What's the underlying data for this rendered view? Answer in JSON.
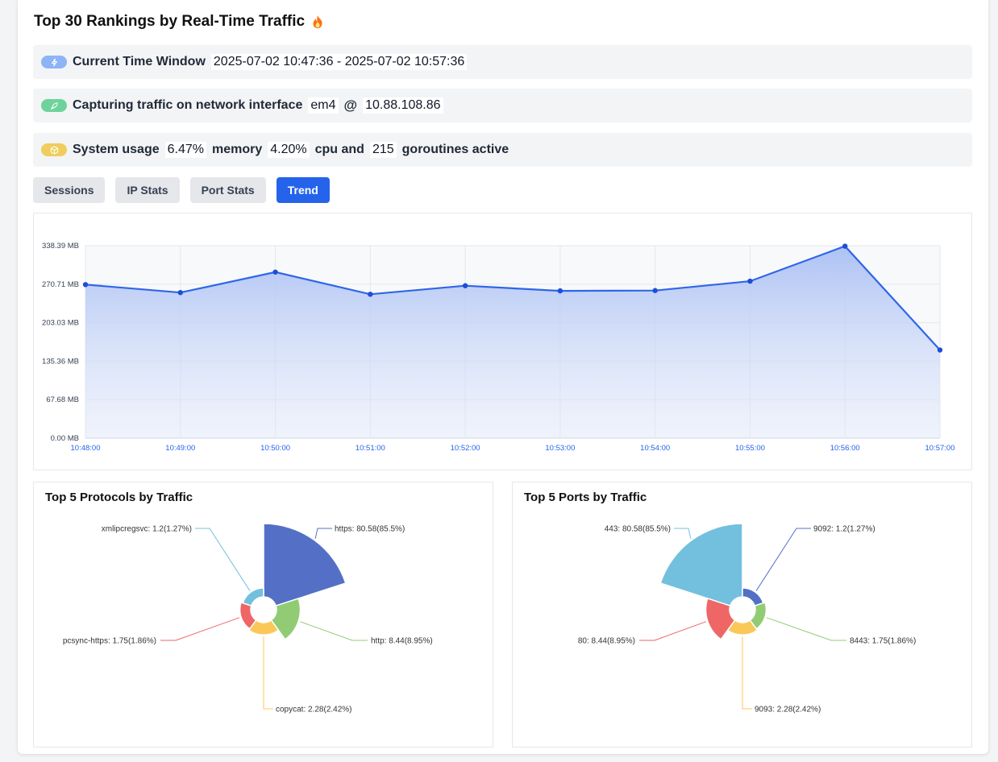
{
  "header": {
    "title": "Top 30 Rankings by Real-Time Traffic"
  },
  "time_window": {
    "label": "Current Time Window",
    "value": "2025-07-02 10:47:36 - 2025-07-02 10:57:36"
  },
  "capture": {
    "label": "Capturing traffic on network interface",
    "interface": "em4",
    "at": "@",
    "ip": "10.88.108.86"
  },
  "system": {
    "label": "System usage",
    "memory_value": "6.47%",
    "memory_label": "memory",
    "cpu_value": "4.20%",
    "cpu_label": "cpu and",
    "goroutines_value": "215",
    "goroutines_label": "goroutines active"
  },
  "tabs": [
    {
      "label": "Sessions",
      "active": false
    },
    {
      "label": "IP Stats",
      "active": false
    },
    {
      "label": "Port Stats",
      "active": false
    },
    {
      "label": "Trend",
      "active": true
    }
  ],
  "colors": {
    "accent": "#2563eb",
    "line": "#2f66e8",
    "area_top": "#a9bff3"
  },
  "chart_data": [
    {
      "type": "area",
      "x": [
        "10:48:00",
        "10:49:00",
        "10:50:00",
        "10:51:00",
        "10:52:00",
        "10:53:00",
        "10:54:00",
        "10:55:00",
        "10:56:00",
        "10:57:00"
      ],
      "values": [
        270.0,
        256.0,
        292.0,
        253.0,
        268.0,
        259.0,
        259.5,
        276.0,
        337.5,
        155.0
      ],
      "y_ticks": [
        "0.00 MB",
        "67.68 MB",
        "135.36 MB",
        "203.03 MB",
        "270.71 MB",
        "338.39 MB"
      ],
      "ylim": [
        0,
        338.39
      ],
      "grid": true
    },
    {
      "type": "pie",
      "title": "Top 5 Protocols by Traffic",
      "slices": [
        {
          "label": "https: 80.58(85.5%)",
          "value": 80.58,
          "color": "#5470c6"
        },
        {
          "label": "http: 8.44(8.95%)",
          "value": 8.44,
          "color": "#91cc75"
        },
        {
          "label": "copycat: 2.28(2.42%)",
          "value": 2.28,
          "color": "#fac858"
        },
        {
          "label": "pcsync-https: 1.75(1.86%)",
          "value": 1.75,
          "color": "#ee6666"
        },
        {
          "label": "xmlipcregsvc: 1.2(1.27%)",
          "value": 1.2,
          "color": "#73c0de"
        }
      ]
    },
    {
      "type": "pie",
      "title": "Top 5 Ports by Traffic",
      "slices": [
        {
          "label": "443: 80.58(85.5%)",
          "value": 80.58,
          "color": "#73c0de"
        },
        {
          "label": "9092: 1.2(1.27%)",
          "value": 1.2,
          "color": "#5470c6"
        },
        {
          "label": "8443: 1.75(1.86%)",
          "value": 1.75,
          "color": "#91cc75"
        },
        {
          "label": "9093: 2.28(2.42%)",
          "value": 2.28,
          "color": "#fac858"
        },
        {
          "label": "80: 8.44(8.95%)",
          "value": 8.44,
          "color": "#ee6666"
        }
      ]
    }
  ]
}
